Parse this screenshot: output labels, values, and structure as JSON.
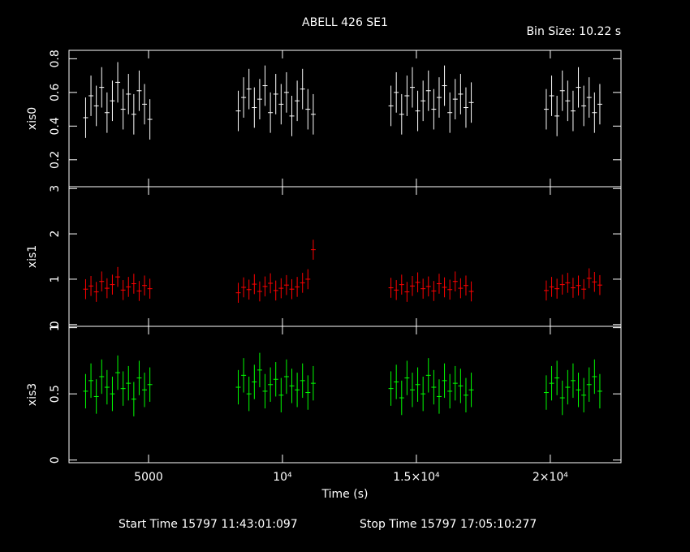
{
  "title": "ABELL 426 SE1",
  "bin_size": "Bin Size: 10.22 s",
  "footer": {
    "start": "Start Time 15797 11:43:01:097",
    "stop": "Stop Time 15797 17:05:10:277"
  },
  "chart_data": [
    {
      "type": "scatter",
      "ylabel": "xis0",
      "color": "#ffffff",
      "x": [
        2650,
        2850,
        3050,
        3250,
        3450,
        3650,
        3850,
        4050,
        4250,
        4450,
        4650,
        4850,
        5050,
        8350,
        8550,
        8750,
        8950,
        9150,
        9350,
        9550,
        9750,
        9950,
        10150,
        10350,
        10550,
        10750,
        10950,
        11150,
        14050,
        14250,
        14450,
        14650,
        14850,
        15050,
        15250,
        15450,
        15650,
        15850,
        16050,
        16250,
        16450,
        16650,
        16850,
        17050,
        19850,
        20050,
        20250,
        20450,
        20650,
        20850,
        21050,
        21250,
        21450,
        21650,
        21850
      ],
      "values": [
        0.45,
        0.58,
        0.52,
        0.63,
        0.48,
        0.55,
        0.66,
        0.5,
        0.59,
        0.47,
        0.61,
        0.53,
        0.44,
        0.49,
        0.57,
        0.62,
        0.51,
        0.56,
        0.64,
        0.48,
        0.59,
        0.53,
        0.6,
        0.46,
        0.55,
        0.62,
        0.5,
        0.47,
        0.52,
        0.6,
        0.47,
        0.58,
        0.63,
        0.49,
        0.55,
        0.61,
        0.5,
        0.57,
        0.64,
        0.48,
        0.56,
        0.59,
        0.51,
        0.54,
        0.5,
        0.58,
        0.46,
        0.61,
        0.55,
        0.49,
        0.63,
        0.52,
        0.57,
        0.48,
        0.53
      ],
      "error": 0.12,
      "xlim": [
        2030,
        22640
      ],
      "ylim": [
        0.04,
        0.85
      ],
      "yticks": [
        0.2,
        0.4,
        0.6,
        0.8
      ]
    },
    {
      "type": "scatter",
      "ylabel": "xis1",
      "color": "#ff0000",
      "x": [
        2650,
        2850,
        3050,
        3250,
        3450,
        3650,
        3850,
        4050,
        4250,
        4450,
        4650,
        4850,
        5050,
        8350,
        8550,
        8750,
        8950,
        9150,
        9350,
        9550,
        9750,
        9950,
        10150,
        10350,
        10550,
        10750,
        10950,
        11150,
        14050,
        14250,
        14450,
        14650,
        14850,
        15050,
        15250,
        15450,
        15650,
        15850,
        16050,
        16250,
        16450,
        16650,
        16850,
        17050,
        19850,
        20050,
        20250,
        20450,
        20650,
        20850,
        21050,
        21250,
        21450,
        21650,
        21850
      ],
      "values": [
        0.78,
        0.85,
        0.72,
        0.95,
        0.8,
        0.88,
        1.05,
        0.76,
        0.83,
        0.9,
        0.74,
        0.86,
        0.79,
        0.7,
        0.82,
        0.77,
        0.89,
        0.73,
        0.84,
        0.91,
        0.75,
        0.8,
        0.87,
        0.78,
        0.83,
        0.92,
        1.0,
        1.65,
        0.81,
        0.76,
        0.88,
        0.72,
        0.85,
        0.93,
        0.79,
        0.84,
        0.74,
        0.9,
        0.82,
        0.77,
        0.95,
        0.8,
        0.86,
        0.73,
        0.75,
        0.83,
        0.79,
        0.88,
        0.92,
        0.81,
        0.86,
        0.78,
        1.02,
        0.94,
        0.87
      ],
      "error": 0.22,
      "xlim": [
        2030,
        22640
      ],
      "ylim": [
        -0.04,
        3.04
      ],
      "yticks": [
        0,
        1,
        2,
        3
      ]
    },
    {
      "type": "scatter",
      "ylabel": "xis3",
      "xlabel": "Time (s)",
      "color": "#00ff00",
      "x": [
        2650,
        2850,
        3050,
        3250,
        3450,
        3650,
        3850,
        4050,
        4250,
        4450,
        4650,
        4850,
        5050,
        8350,
        8550,
        8750,
        8950,
        9150,
        9350,
        9550,
        9750,
        9950,
        10150,
        10350,
        10550,
        10750,
        10950,
        11150,
        14050,
        14250,
        14450,
        14650,
        14850,
        15050,
        15250,
        15450,
        15650,
        15850,
        16050,
        16250,
        16450,
        16650,
        16850,
        17050,
        19850,
        20050,
        20250,
        20450,
        20650,
        20850,
        21050,
        21250,
        21450,
        21650,
        21850
      ],
      "values": [
        0.52,
        0.6,
        0.48,
        0.63,
        0.55,
        0.5,
        0.66,
        0.54,
        0.58,
        0.46,
        0.62,
        0.53,
        0.57,
        0.55,
        0.64,
        0.5,
        0.59,
        0.68,
        0.52,
        0.57,
        0.61,
        0.49,
        0.63,
        0.56,
        0.53,
        0.6,
        0.51,
        0.58,
        0.54,
        0.59,
        0.47,
        0.62,
        0.53,
        0.57,
        0.5,
        0.64,
        0.55,
        0.48,
        0.6,
        0.52,
        0.58,
        0.56,
        0.49,
        0.53,
        0.51,
        0.58,
        0.62,
        0.47,
        0.55,
        0.6,
        0.53,
        0.49,
        0.57,
        0.63,
        0.52
      ],
      "error": 0.13,
      "xlim": [
        2030,
        22640
      ],
      "ylim": [
        -0.02,
        1.01
      ],
      "yticks": [
        0,
        0.5,
        1
      ],
      "xticks": [
        5000,
        {
          "value": 10000,
          "label": "10⁴"
        },
        {
          "value": 15000,
          "label": "1.5×10⁴"
        },
        {
          "value": 20000,
          "label": "2×10⁴"
        }
      ]
    }
  ]
}
